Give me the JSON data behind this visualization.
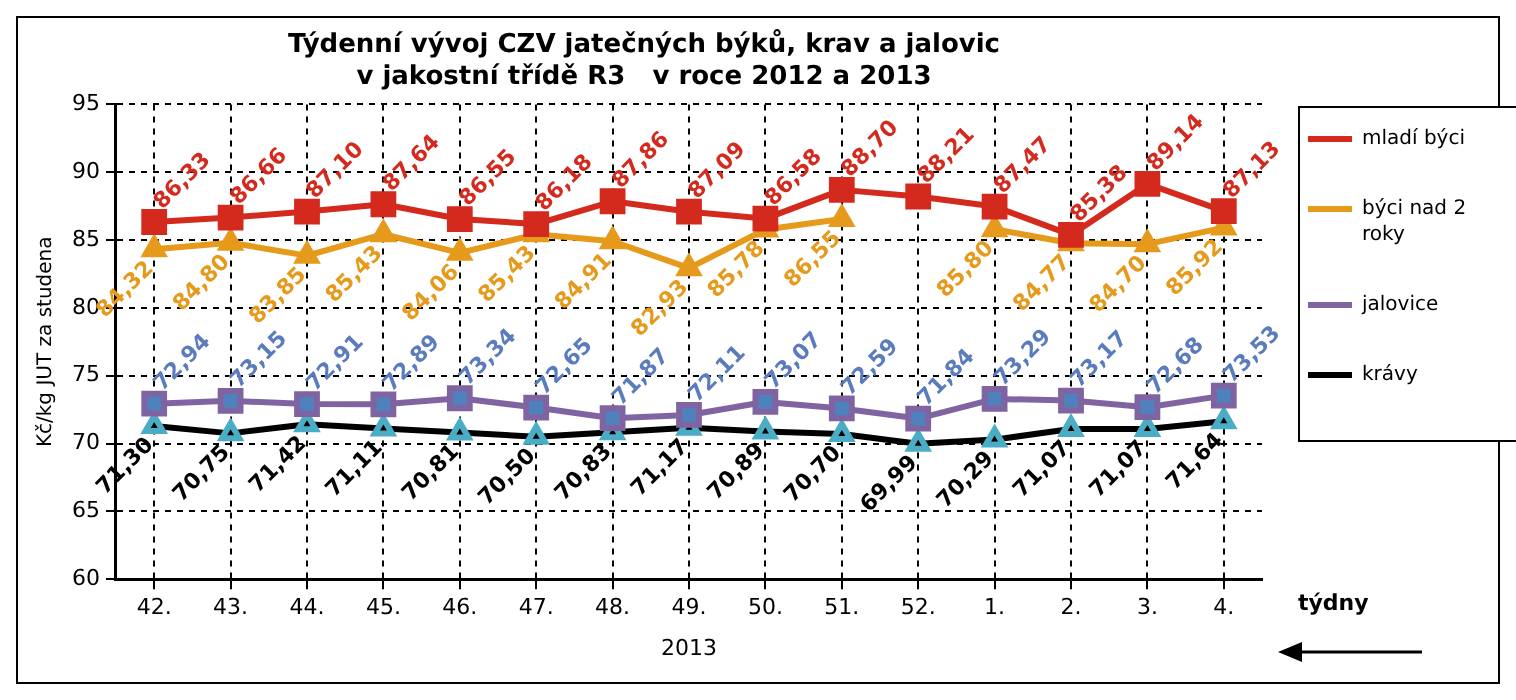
{
  "chart_data": {
    "type": "line",
    "title": "Týdenní vývoj CZV jatečných býků, krav a jalovic\nv jakostní třídě R3   v roce 2012 a 2013",
    "xlabel": "2013",
    "ylabel": "Kč/kg JUT za studena",
    "annotations": [
      "týdny"
    ],
    "categories": [
      "42.",
      "43.",
      "44.",
      "45.",
      "46.",
      "47.",
      "48.",
      "49.",
      "50.",
      "51.",
      "52.",
      "1.",
      "2.",
      "3.",
      "4."
    ],
    "ylim": [
      60,
      95
    ],
    "yticks": [
      60,
      65,
      70,
      75,
      80,
      85,
      90,
      95
    ],
    "grid": true,
    "legend": "right",
    "line_style": "solid",
    "series": [
      {
        "name": "mladí býci",
        "color": "#d42a1e",
        "marker": "square",
        "values": [
          86.33,
          86.66,
          87.1,
          87.64,
          86.55,
          86.18,
          87.86,
          87.09,
          86.58,
          88.7,
          88.21,
          87.47,
          85.38,
          89.14,
          87.13
        ],
        "value_labels": [
          "86,33",
          "86,66",
          "87,10",
          "87,64",
          "86,55",
          "86,18",
          "87,86",
          "87,09",
          "86,58",
          "88,70",
          "88,21",
          "87,47",
          "85,38",
          "89,14",
          "87,13"
        ]
      },
      {
        "name": "býci nad 2 roky",
        "color": "#e69a1c",
        "marker": "triangle",
        "values": [
          84.32,
          84.8,
          83.85,
          85.43,
          84.06,
          85.43,
          84.91,
          82.93,
          85.78,
          86.55,
          null,
          85.8,
          84.77,
          84.7,
          85.92
        ],
        "value_labels": [
          "84,32",
          "84,80",
          "83,85",
          "85,43",
          "84,06",
          "85,43",
          "84,91",
          "82,93",
          "85,78",
          "86,55",
          null,
          "85,80",
          "84,77",
          "84,70",
          "85,92"
        ]
      },
      {
        "name": "jalovice",
        "color": "#8064a2",
        "marker": "square",
        "values": [
          72.94,
          73.15,
          72.91,
          72.89,
          73.34,
          72.65,
          71.87,
          72.11,
          73.07,
          72.59,
          71.84,
          73.29,
          73.17,
          72.68,
          73.53
        ],
        "value_labels": [
          "72,94",
          "73,15",
          "72,91",
          "72,89",
          "73,34",
          "72,65",
          "71,87",
          "72,11",
          "73,07",
          "72,59",
          "71,84",
          "73,29",
          "73,17",
          "72,68",
          "73,53"
        ]
      },
      {
        "name": "krávy",
        "color": "#000000",
        "marker": "triangle",
        "values": [
          71.3,
          70.75,
          71.42,
          71.11,
          70.81,
          70.5,
          70.83,
          71.17,
          70.89,
          70.7,
          69.99,
          70.29,
          71.07,
          71.07,
          71.64
        ],
        "value_labels": [
          "71,30",
          "70,75",
          "71,42",
          "71,11",
          "70,81",
          "70,50",
          "70,83",
          "71,17",
          "70,89",
          "70,70",
          "69,99",
          "70,29",
          "71,07",
          "71,07",
          "71,64"
        ]
      }
    ]
  }
}
